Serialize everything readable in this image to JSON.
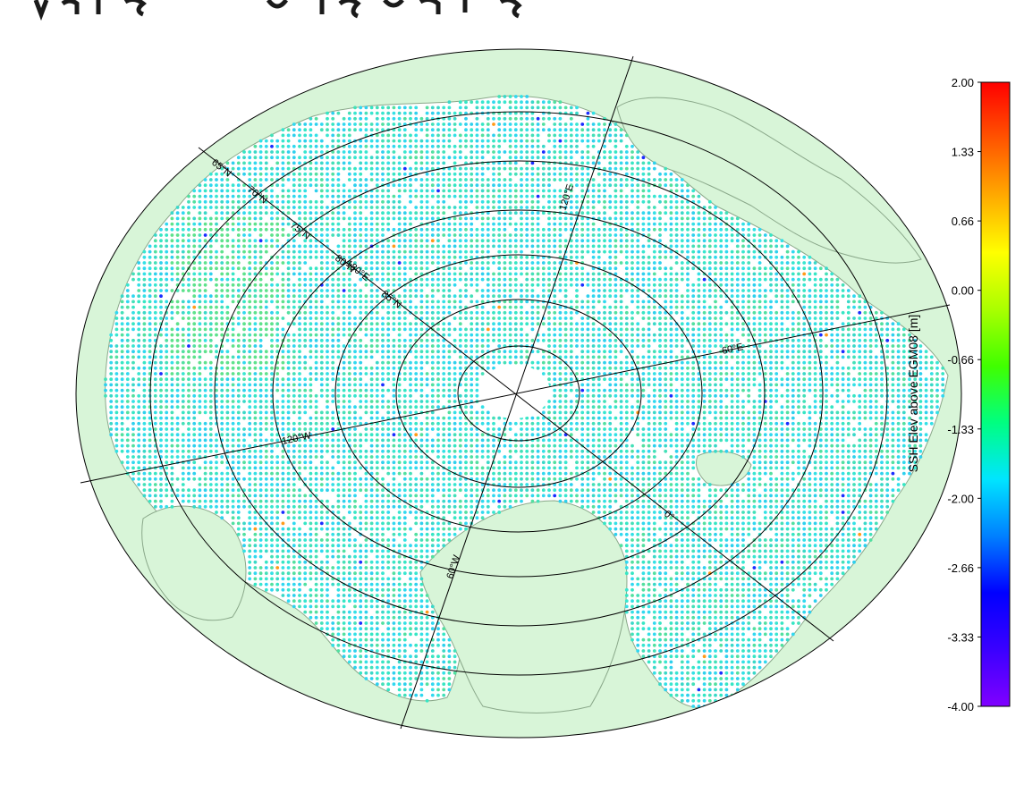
{
  "map": {
    "projection": "north-polar-stereographic",
    "colors": {
      "land": "#d8f5d8",
      "land_outline": "#8aa88a",
      "ocean": "#ffffff",
      "graticule": "#000000",
      "background": "#ffffff",
      "title_fragment": "#1a1a1a"
    },
    "latitude_circle_labels": [
      "65°N",
      "70°N",
      "75°N",
      "80°N",
      "85°N"
    ],
    "meridian_labels": [
      "120°E",
      "180°E",
      "60°W",
      "120°W",
      "0°",
      "60°E"
    ],
    "data_field": "sea surface height dots, mostly cyan/green between -2.0 and -0.66 m",
    "scattered_value_range_m": [
      -3.5,
      1.4
    ]
  },
  "colorbar": {
    "label": "SSH Elev above EGM08 [m]",
    "min": -4.0,
    "max": 2.0,
    "ticks": [
      "2.00",
      "1.33",
      "0.66",
      "0.00",
      "-0.66",
      "-1.33",
      "-2.00",
      "-2.66",
      "-3.33",
      "-4.00"
    ],
    "colormap": [
      "#8000ff",
      "#3a00ff",
      "#0000ff",
      "#0080ff",
      "#00e5ff",
      "#00ff80",
      "#40ff00",
      "#aaff00",
      "#ffff00",
      "#ffaa00",
      "#ff5500",
      "#ff0000"
    ]
  }
}
